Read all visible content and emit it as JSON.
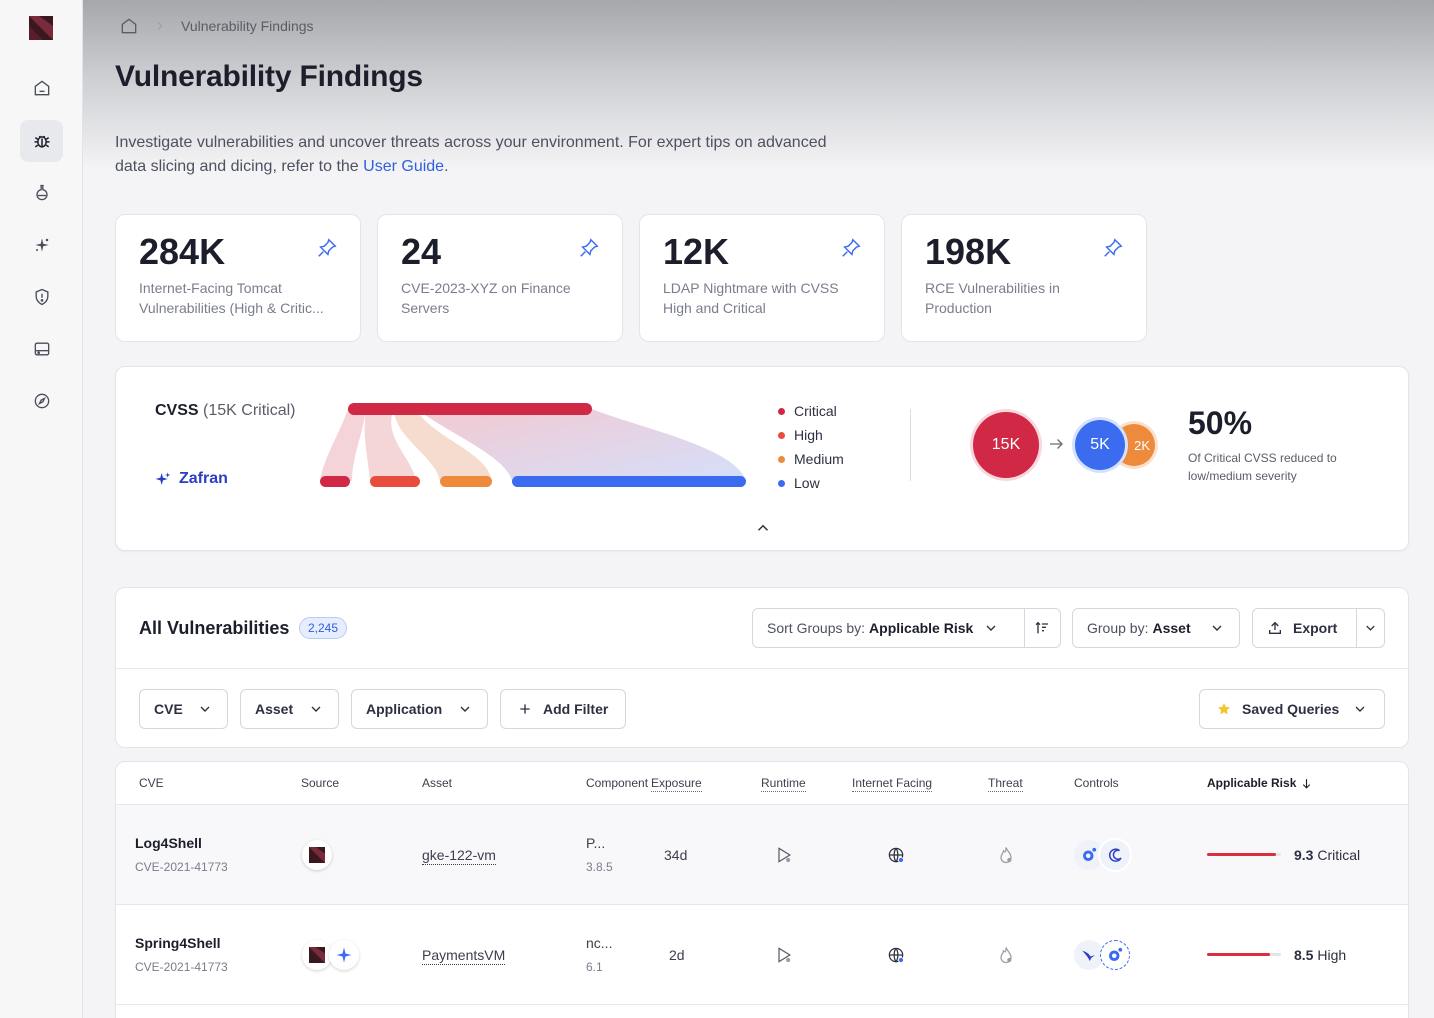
{
  "breadcrumb": {
    "home_icon": "home-icon",
    "current": "Vulnerability Findings"
  },
  "page": {
    "title": "Vulnerability Findings",
    "desc_text": "Investigate vulnerabilities and uncover threats across your environment. For expert tips on advanced data slicing and dicing, refer to the ",
    "desc_link": "User Guide",
    "desc_end": "."
  },
  "sidebar": {
    "items": [
      {
        "icon": "home-icon"
      },
      {
        "icon": "bug-icon",
        "active": true
      },
      {
        "icon": "flask-icon"
      },
      {
        "icon": "sparkle-icon"
      },
      {
        "icon": "shield-icon"
      },
      {
        "icon": "drive-icon"
      },
      {
        "icon": "compass-icon"
      }
    ]
  },
  "stats": [
    {
      "value": "284K",
      "label": "Internet-Facing Tomcat Vulnerabilities (High & Critic..."
    },
    {
      "value": "24",
      "label": "CVE-2023-XYZ on Finance Servers"
    },
    {
      "value": "12K",
      "label": "LDAP Nightmare with CVSS High and Critical"
    },
    {
      "value": "198K",
      "label": "RCE Vulnerabilities in Production"
    }
  ],
  "cvss": {
    "title_bold": "CVSS",
    "title_rest": "(15K Critical)",
    "zafran_label": "Zafran",
    "legend": [
      {
        "label": "Critical",
        "color": "#d02845"
      },
      {
        "label": "High",
        "color": "#e84c3d"
      },
      {
        "label": "Medium",
        "color": "#ee8a3b"
      },
      {
        "label": "Low",
        "color": "#3b6cf0"
      }
    ],
    "from_value": "15K",
    "to_value": "5K",
    "to_value_2": "2K",
    "percent": "50%",
    "percent_desc": "Of Critical CVSS reduced to low/medium severity"
  },
  "vulns": {
    "title": "All Vulnerabilities",
    "count": "2,245",
    "sort_prefix": "Sort Groups by:",
    "sort_value": "Applicable Risk",
    "group_prefix": "Group by:",
    "group_value": "Asset",
    "export_label": "Export",
    "filters": [
      "CVE",
      "Asset",
      "Application"
    ],
    "add_filter": "Add Filter",
    "saved_queries": "Saved Queries"
  },
  "table": {
    "headers": [
      "CVE",
      "Source",
      "Asset",
      "Component",
      "Exposure",
      "Runtime",
      "Internet Facing",
      "Threat",
      "Controls",
      "Applicable Risk"
    ],
    "rows": [
      {
        "cve": "Log4Shell",
        "cve_id": "CVE-2021-41773",
        "asset": "gke-122-vm",
        "component": "P...",
        "version": "3.8.5",
        "exposure": "34d",
        "risk_score": "9.3",
        "risk_label": "Critical",
        "risk_level": 0.93
      },
      {
        "cve": "Spring4Shell",
        "cve_id": "CVE-2021-41773",
        "asset": "PaymentsVM",
        "component": "nc...",
        "version": "6.1",
        "exposure": "2d",
        "risk_score": "8.5",
        "risk_label": "High",
        "risk_level": 0.85
      }
    ]
  }
}
